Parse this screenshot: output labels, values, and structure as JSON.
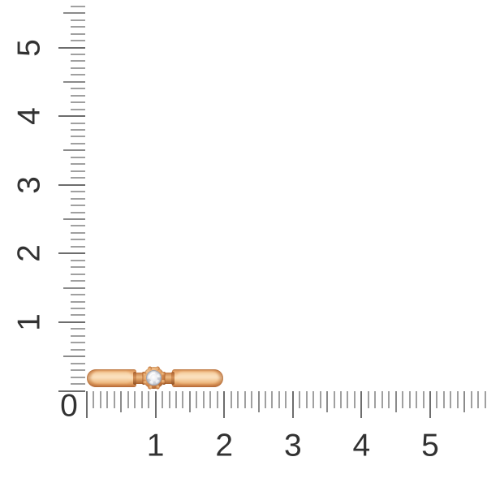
{
  "background": "#ffffff",
  "rulers": {
    "origin_label": "0",
    "horizontal": {
      "labels": [
        "1",
        "2",
        "3",
        "4",
        "5"
      ],
      "min": 0,
      "max": 5.8,
      "minor_step": 0.1
    },
    "vertical": {
      "labels": [
        "1",
        "2",
        "3",
        "4",
        "5"
      ],
      "min": 0,
      "max": 5.6,
      "minor_step": 0.1
    },
    "label_color": "#323232",
    "tick_colors": {
      "minor": "#a0a0a0",
      "medium": "#8b8b8b",
      "major": "#6d6d6d"
    }
  },
  "photo": {
    "subject": "rose-gold-ring-side-view-with-round-diamond",
    "colors": {
      "gold_highlight": "#fbe0bb",
      "gold_mid": "#eeac70",
      "gold_shadow": "#b96f3c",
      "gem_light": "#f5f6f8",
      "gem_facet": "#c9cdd6"
    }
  }
}
